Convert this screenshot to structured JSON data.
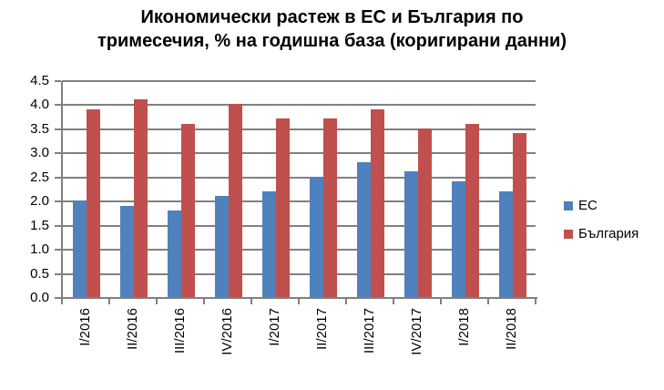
{
  "chart_data": {
    "type": "bar",
    "title": "Икономически растеж в ЕС и България по тримесечия, % на годишна база (коригирани данни)",
    "title_lines": [
      "Икономически растеж в ЕС и България по",
      "тримесечия, % на годишна база (коригирани данни)"
    ],
    "categories": [
      "I/2016",
      "II/2016",
      "III/2016",
      "IV/2016",
      "I/2017",
      "II/2017",
      "III/2017",
      "IV/2017",
      "I/2018",
      "II/2018"
    ],
    "series": [
      {
        "name": "ЕС",
        "key": "ec",
        "color": "#4F81BD",
        "values": [
          2.0,
          1.9,
          1.8,
          2.1,
          2.2,
          2.5,
          2.8,
          2.6,
          2.4,
          2.2
        ]
      },
      {
        "name": "България",
        "key": "bulgaria",
        "color": "#C0504D",
        "values": [
          3.9,
          4.1,
          3.6,
          4.0,
          3.7,
          3.7,
          3.9,
          3.5,
          3.6,
          3.4
        ]
      }
    ],
    "xlabel": "",
    "ylabel": "",
    "ylim": [
      0,
      4.5
    ],
    "ytick_step": 0.5,
    "ytick_labels": [
      "0.0",
      "0.5",
      "1.0",
      "1.5",
      "2.0",
      "2.5",
      "3.0",
      "3.5",
      "4.0",
      "4.5"
    ],
    "grid": true,
    "legend_position": "right",
    "colors": {
      "gridline": "#808080",
      "axis": "#808080",
      "text": "#000000",
      "background": "#FFFFFF"
    }
  }
}
